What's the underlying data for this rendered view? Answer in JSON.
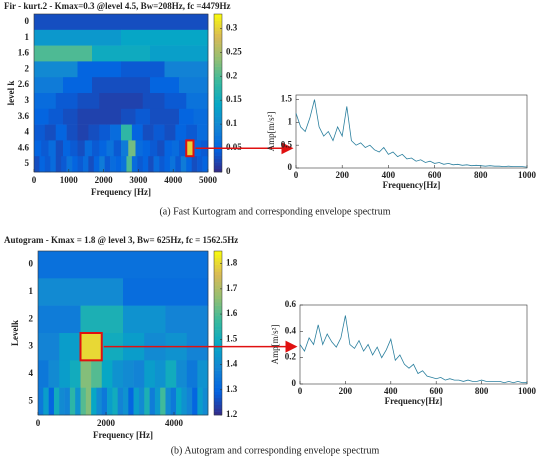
{
  "chart_data": [
    {
      "type": "heatmap",
      "title": "Fir - kurt.2 - Kmax=0.3 @level 4.5, Bw=208Hz, fc =4479Hz",
      "x_label": "Frequency [Hz]",
      "y_label": "level k",
      "rows": [
        0,
        1,
        1.6,
        2,
        2.6,
        3,
        3.6,
        4,
        4.6,
        5
      ],
      "z": [
        [
          0.03
        ],
        [
          0.12,
          0.14
        ],
        [
          0.2,
          0.15,
          0.13
        ],
        [
          0.1,
          0.05,
          0.04,
          0.09
        ],
        [
          0.08,
          0.05,
          0.03,
          0.03,
          0.05,
          0.08
        ],
        [
          0.06,
          0.04,
          0.03,
          0.02,
          0.02,
          0.03,
          0.04,
          0.07
        ],
        [
          0.05,
          0.04,
          0.03,
          0.02,
          0.02,
          0.02,
          0.03,
          0.04,
          0.03,
          0.03,
          0.05,
          0.06
        ],
        [
          0.04,
          0.03,
          0.05,
          0.03,
          0.02,
          0.03,
          0.04,
          0.06,
          0.18,
          0.05,
          0.03,
          0.04,
          0.03,
          0.05,
          0.04,
          0.06
        ],
        [
          0.05,
          0.04,
          0.06,
          0.03,
          0.05,
          0.04,
          0.03,
          0.06,
          0.04,
          0.05,
          0.07,
          0.04,
          0.08,
          0.22,
          0.06,
          0.05,
          0.04,
          0.03,
          0.05,
          0.06,
          0.04,
          0.3,
          0.05,
          0.04
        ],
        [
          0.03,
          0.05,
          0.04,
          0.06,
          0.03,
          0.04,
          0.07,
          0.05,
          0.04,
          0.06,
          0.03,
          0.05,
          0.08,
          0.04,
          0.06,
          0.05,
          0.07,
          0.2,
          0.06,
          0.04,
          0.05,
          0.03,
          0.06,
          0.04,
          0.05,
          0.07,
          0.04,
          0.08,
          0.05,
          0.03,
          0.04,
          0.05
        ]
      ],
      "xlim": [
        0,
        5000
      ],
      "xticks": [
        0,
        1000,
        2000,
        3000,
        4000,
        5000
      ],
      "clim": [
        0,
        0.33
      ],
      "cticks": [
        0,
        0.05,
        0.1,
        0.15,
        0.2,
        0.25,
        0.3
      ]
    },
    {
      "type": "line",
      "x_label": "Frequency[Hz]",
      "y_label": "Amp[m/s²]",
      "x": [
        0,
        20,
        40,
        60,
        80,
        100,
        120,
        140,
        160,
        180,
        200,
        220,
        240,
        260,
        280,
        300,
        320,
        340,
        360,
        380,
        400,
        420,
        440,
        460,
        480,
        500,
        520,
        540,
        560,
        580,
        600,
        620,
        640,
        660,
        680,
        700,
        720,
        740,
        760,
        780,
        800,
        820,
        840,
        860,
        880,
        900,
        920,
        940,
        960,
        980,
        1000
      ],
      "series": [
        {
          "color": "#2a7f9e",
          "values": [
            1.2,
            0.9,
            0.8,
            1.1,
            1.5,
            0.9,
            0.7,
            0.8,
            0.6,
            0.9,
            0.7,
            1.35,
            0.6,
            0.5,
            0.55,
            0.45,
            0.5,
            0.4,
            0.35,
            0.45,
            0.3,
            0.35,
            0.25,
            0.3,
            0.2,
            0.22,
            0.15,
            0.18,
            0.12,
            0.15,
            0.1,
            0.12,
            0.08,
            0.1,
            0.07,
            0.08,
            0.06,
            0.07,
            0.05,
            0.06,
            0.05,
            0.04,
            0.05,
            0.04,
            0.04,
            0.03,
            0.04,
            0.03,
            0.03,
            0.03,
            0.02
          ]
        }
      ],
      "xlim": [
        0,
        1000
      ],
      "xticks": [
        0,
        200,
        400,
        600,
        800,
        1000
      ],
      "ylim": [
        0,
        1.6
      ],
      "yticks": [
        0,
        0.5,
        1,
        1.5
      ]
    },
    {
      "type": "heatmap",
      "title": "Autogram - Kmax = 1.8 @ level 3, Bw= 625Hz, fc = 1562.5Hz",
      "x_label": "Frequency [Hz]",
      "y_label": "Levelk",
      "rows": [
        0,
        1,
        2,
        3,
        4,
        5
      ],
      "z": [
        [
          1.33
        ],
        [
          1.4,
          1.32
        ],
        [
          1.36,
          1.52,
          1.42,
          1.38
        ],
        [
          1.38,
          1.45,
          1.8,
          1.5,
          1.45,
          1.4,
          1.42,
          1.38
        ],
        [
          1.35,
          1.4,
          1.45,
          1.5,
          1.65,
          1.6,
          1.48,
          1.42,
          1.4,
          1.38,
          1.45,
          1.42,
          1.5,
          1.4,
          1.35,
          1.42
        ],
        [
          1.35,
          1.45,
          1.3,
          1.5,
          1.4,
          1.38,
          1.55,
          1.42,
          1.6,
          1.65,
          1.48,
          1.4,
          1.35,
          1.45,
          1.5,
          1.38,
          1.42,
          1.3,
          1.45,
          1.4,
          1.52,
          1.36,
          1.44,
          1.58,
          1.4,
          1.35,
          1.48,
          1.42,
          1.38,
          1.3,
          1.45,
          1.4
        ]
      ],
      "xlim": [
        0,
        5000
      ],
      "xticks": [
        0,
        2000,
        4000
      ],
      "clim": [
        1.2,
        1.85
      ],
      "cticks": [
        1.2,
        1.3,
        1.4,
        1.5,
        1.6,
        1.7,
        1.8
      ]
    },
    {
      "type": "line",
      "x_label": "Frequency[Hz]",
      "y_label": "Amp[m/s²]",
      "x": [
        0,
        20,
        40,
        60,
        80,
        100,
        120,
        140,
        160,
        180,
        200,
        220,
        240,
        260,
        280,
        300,
        320,
        340,
        360,
        380,
        400,
        420,
        440,
        460,
        480,
        500,
        520,
        540,
        560,
        580,
        600,
        620,
        640,
        660,
        680,
        700,
        720,
        740,
        760,
        780,
        800,
        820,
        840,
        860,
        880,
        900,
        920,
        940,
        960,
        980,
        1000
      ],
      "series": [
        {
          "color": "#2a7f9e",
          "values": [
            0.3,
            0.25,
            0.35,
            0.3,
            0.45,
            0.3,
            0.38,
            0.32,
            0.28,
            0.35,
            0.52,
            0.3,
            0.27,
            0.33,
            0.25,
            0.3,
            0.22,
            0.28,
            0.2,
            0.26,
            0.34,
            0.18,
            0.22,
            0.15,
            0.12,
            0.15,
            0.08,
            0.1,
            0.06,
            0.05,
            0.04,
            0.05,
            0.03,
            0.04,
            0.03,
            0.03,
            0.02,
            0.03,
            0.02,
            0.02,
            0.03,
            0.02,
            0.02,
            0.02,
            0.02,
            0.01,
            0.02,
            0.01,
            0.02,
            0.01,
            0.01
          ]
        }
      ],
      "xlim": [
        0,
        1000
      ],
      "xticks": [
        0,
        200,
        400,
        600,
        800,
        1000
      ],
      "ylim": [
        0,
        0.6
      ],
      "yticks": [
        0,
        0.2,
        0.4,
        0.6
      ]
    }
  ],
  "captions": [
    "(a) Fast Kurtogram and corresponding envelope spectrum",
    "(b) Autogram and corresponding envelope spectrum"
  ]
}
